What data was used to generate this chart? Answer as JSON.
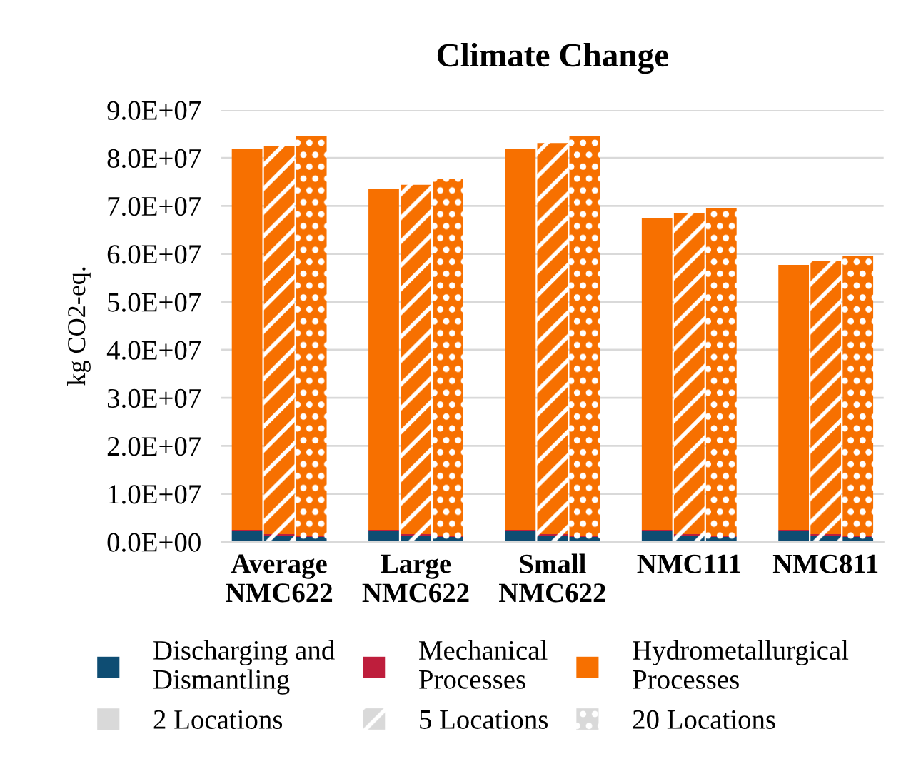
{
  "chart_data": {
    "type": "bar",
    "title": "Climate Change",
    "ylabel": "kg CO2-eq.",
    "stacked": true,
    "categories": [
      null,
      "Average\nNMC622",
      null,
      null,
      "Large\nNMC622",
      null,
      null,
      "Small\nNMC622",
      null,
      null,
      "NMC111",
      null,
      null,
      "NMC811",
      null
    ],
    "series": [
      {
        "name": "Discharging and\nDismantling",
        "color": "#0e4d73",
        "values": [
          2200000,
          1300000,
          1000000,
          2200000,
          1300000,
          1000000,
          2200000,
          1300000,
          1000000,
          2200000,
          1300000,
          1000000,
          2200000,
          1300000,
          1000000
        ]
      },
      {
        "name": "Mechanical\nProcesses",
        "color": "#be1e3c",
        "values": [
          300000,
          300000,
          300000,
          300000,
          300000,
          300000,
          300000,
          300000,
          300000,
          300000,
          300000,
          300000,
          300000,
          300000,
          300000
        ]
      },
      {
        "name": "Hydrometallurgical\nProcesses",
        "color": "#f77000",
        "values": [
          79300000,
          80800000,
          83200000,
          71000000,
          72800000,
          74300000,
          79300000,
          81500000,
          83200000,
          65000000,
          66900000,
          68300000,
          55200000,
          57000000,
          58300000
        ]
      },
      {
        "name": "2 Locations",
        "color": "#d9d9d9",
        "values": [
          null,
          null,
          null,
          null,
          null,
          null,
          null,
          null,
          null,
          null,
          null,
          null,
          null,
          null,
          null
        ]
      },
      {
        "name": "5 Locations",
        "color": "#d9d9d9",
        "values": [
          null,
          null,
          null,
          null,
          null,
          null,
          null,
          null,
          null,
          null,
          null,
          null,
          null,
          null,
          null
        ]
      },
      {
        "name": "20 Locations",
        "color": "#d9d9d9",
        "values": [
          null,
          null,
          null,
          null,
          null,
          null,
          null,
          null,
          null,
          null,
          null,
          null,
          null,
          null,
          null
        ]
      }
    ],
    "ylim": [
      0,
      90000000
    ],
    "yticks": [
      {
        "value": 0,
        "label": "0.0E+00"
      },
      {
        "value": 10000000,
        "label": "1.0E+07"
      },
      {
        "value": 20000000,
        "label": "2.0E+07"
      },
      {
        "value": 30000000,
        "label": "3.0E+07"
      },
      {
        "value": 40000000,
        "label": "4.0E+07"
      },
      {
        "value": 50000000,
        "label": "5.0E+07"
      },
      {
        "value": 60000000,
        "label": "6.0E+07"
      },
      {
        "value": 70000000,
        "label": "7.0E+07"
      },
      {
        "value": 80000000,
        "label": "8.0E+07"
      },
      {
        "value": 90000000,
        "label": "9.0E+07"
      }
    ],
    "grid": "y",
    "legend": "bottom"
  }
}
